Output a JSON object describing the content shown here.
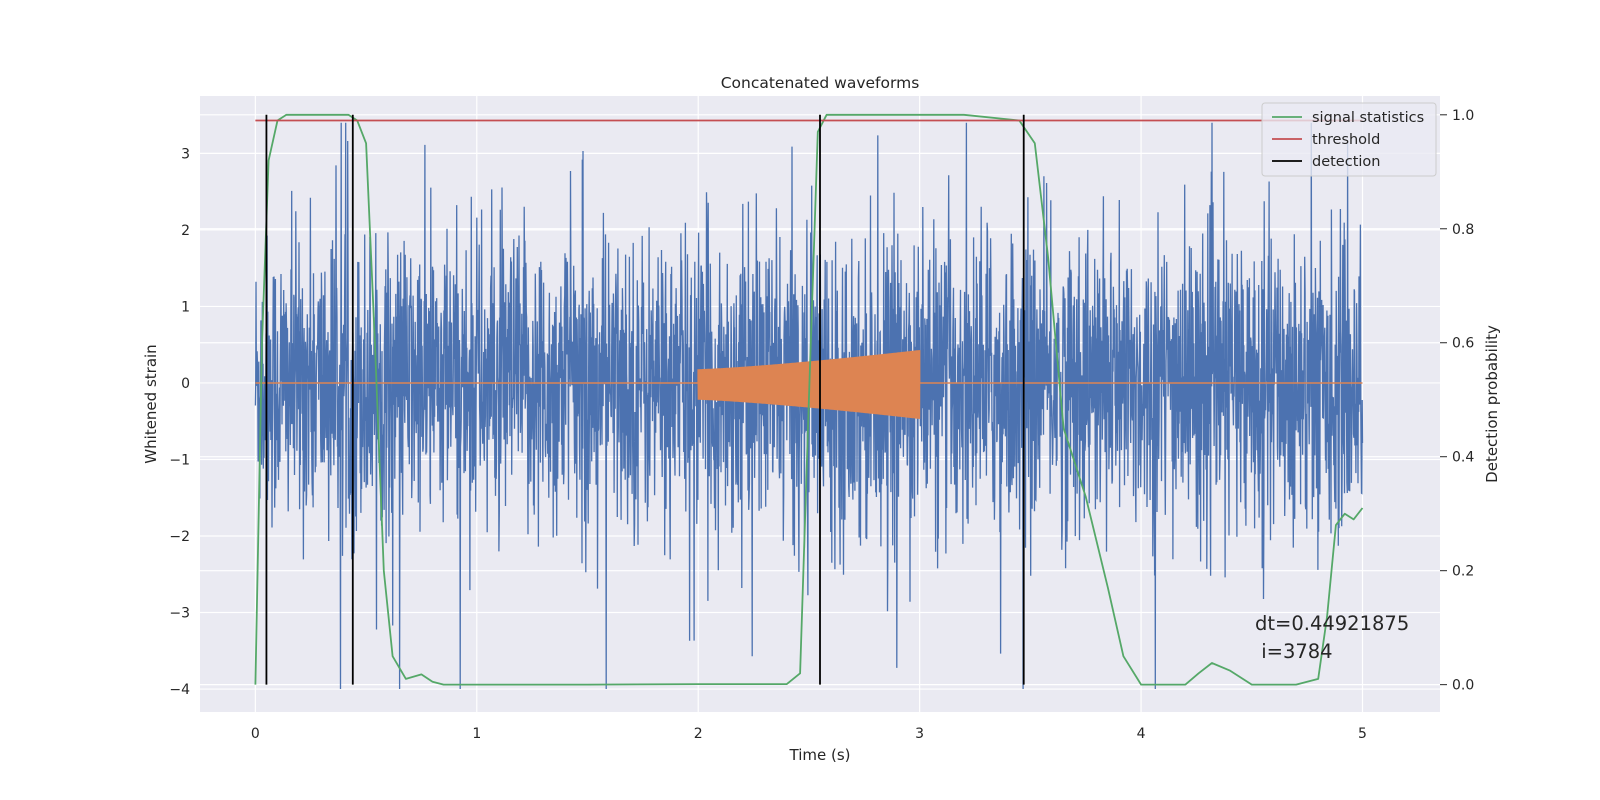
{
  "chart_data": {
    "type": "line",
    "title": "Concatenated waveforms",
    "xlabel": "Time (s)",
    "ylabel": "Whitened strain",
    "y2label": "Detection probability",
    "xlim": [
      -0.25,
      5.35
    ],
    "ylim": [
      -4.3,
      3.75
    ],
    "y2lim": [
      -0.048,
      1.033
    ],
    "xticks": [
      0,
      1,
      2,
      3,
      4,
      5
    ],
    "xtick_labels": [
      "0",
      "1",
      "2",
      "3",
      "4",
      "5"
    ],
    "yticks": [
      -4,
      -3,
      -2,
      -1,
      0,
      1,
      2,
      3
    ],
    "ytick_labels": [
      "−4",
      "−3",
      "−2",
      "−1",
      "0",
      "1",
      "2",
      "3"
    ],
    "y2ticks": [
      0.0,
      0.2,
      0.4,
      0.6,
      0.8,
      1.0
    ],
    "y2tick_labels": [
      "0.0",
      "0.2",
      "0.4",
      "0.6",
      "0.8",
      "1.0"
    ],
    "grid": true,
    "legend_position": "top-right",
    "colors": {
      "background": "#eaeaf2",
      "grid": "#ffffff",
      "strain": "#4c72b0",
      "injected": "#dd8452",
      "signal_statistics": "#55a868",
      "threshold": "#c44e52",
      "detection": "#000000"
    },
    "series": [
      {
        "name": "",
        "axis": "left",
        "description_role": "whitened noisy strain",
        "x_range": [
          0,
          5
        ],
        "envelope_upper": [
          [
            0,
            1.5
          ],
          [
            0.5,
            1.8
          ],
          [
            1.0,
            1.6
          ],
          [
            2.0,
            1.7
          ],
          [
            3.0,
            1.8
          ],
          [
            4.0,
            1.9
          ],
          [
            5.0,
            1.4
          ]
        ],
        "peak_values": [
          3.3,
          3.3,
          3.1,
          3.0,
          3.2,
          3.4,
          3.3
        ],
        "trough_values": [
          -3.4,
          -3.1,
          -3.2,
          -3.3,
          -3.5,
          -4.0,
          -2.9
        ]
      },
      {
        "name": "",
        "axis": "left",
        "description_role": "injected chirp waveform",
        "x": [
          0,
          2.0,
          2.0,
          2.5,
          3.0,
          3.0,
          5.0
        ],
        "amplitude": [
          0,
          0,
          0.2,
          0.3,
          0.45,
          0,
          0
        ]
      },
      {
        "name": "signal statistics",
        "axis": "right",
        "x": [
          0.0,
          0.03,
          0.06,
          0.1,
          0.14,
          0.2,
          0.3,
          0.42,
          0.46,
          0.5,
          0.54,
          0.58,
          0.62,
          0.68,
          0.75,
          0.8,
          0.85,
          1.0,
          1.5,
          2.0,
          2.4,
          2.46,
          2.5,
          2.54,
          2.58,
          2.62,
          2.8,
          3.2,
          3.45,
          3.52,
          3.58,
          3.65,
          3.75,
          3.85,
          3.92,
          4.0,
          4.2,
          4.26,
          4.32,
          4.4,
          4.5,
          4.7,
          4.8,
          4.84,
          4.88,
          4.92,
          4.96,
          5.0
        ],
        "y": [
          0.0,
          0.6,
          0.92,
          0.99,
          1.0,
          1.0,
          1.0,
          1.0,
          0.99,
          0.95,
          0.6,
          0.2,
          0.05,
          0.01,
          0.018,
          0.005,
          0.0,
          0.0,
          0.0,
          0.001,
          0.001,
          0.02,
          0.5,
          0.97,
          1.0,
          1.0,
          1.0,
          1.0,
          0.99,
          0.95,
          0.75,
          0.45,
          0.33,
          0.17,
          0.05,
          0.0,
          0.0,
          0.02,
          0.038,
          0.025,
          0.0,
          0.0,
          0.01,
          0.12,
          0.28,
          0.3,
          0.29,
          0.31
        ]
      },
      {
        "name": "threshold",
        "axis": "right",
        "x": [
          0,
          5
        ],
        "y": [
          0.99,
          0.99
        ]
      },
      {
        "name": "detection",
        "axis": "right",
        "type": "vlines",
        "x": [
          0.05,
          0.44,
          2.55,
          3.47
        ],
        "y_range": [
          0.0,
          1.0
        ]
      }
    ],
    "legend": [
      "signal statistics",
      "threshold",
      "detection"
    ],
    "annotation": {
      "line1": "dt=0.44921875",
      "line2": " i=3784",
      "x": 4.5,
      "y": -3.0
    }
  }
}
